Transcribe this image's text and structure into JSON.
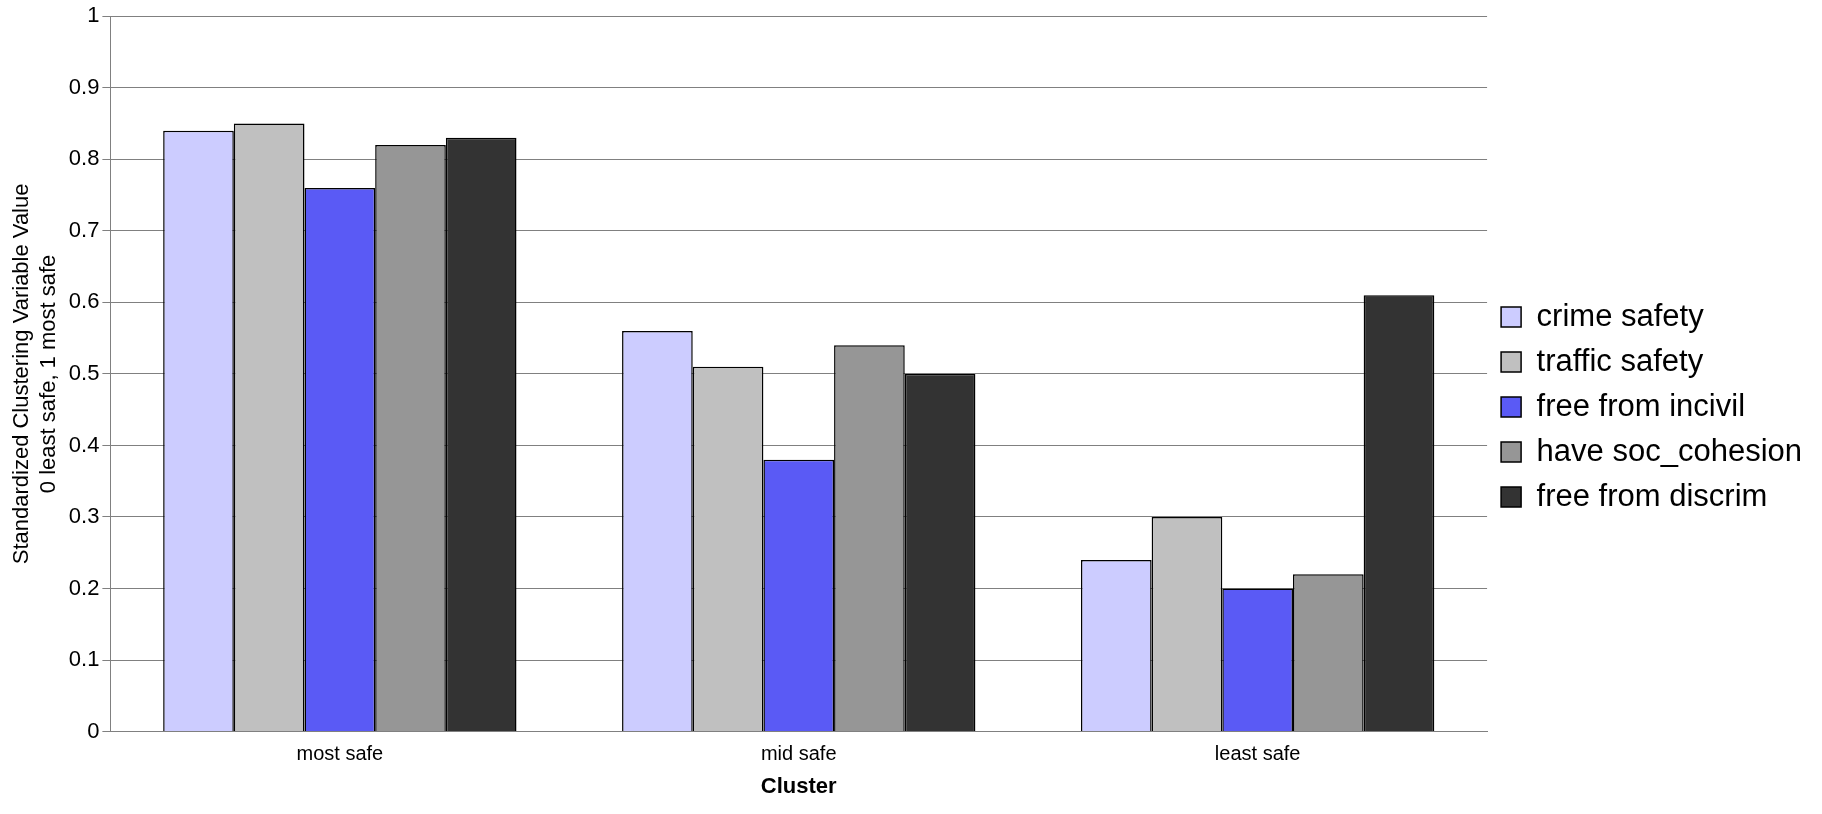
{
  "chart_data": {
    "type": "bar",
    "xlabel": "Cluster",
    "ylabel": "Standardized Clustering Variable Value\n0 least safe, 1 most safe",
    "categories": [
      "most safe",
      "mid safe",
      "least safe"
    ],
    "series": [
      {
        "name": "crime safety",
        "color": "#ccccff",
        "values": [
          0.84,
          0.56,
          0.24
        ]
      },
      {
        "name": "traffic safety",
        "color": "#c0c0c0",
        "values": [
          0.85,
          0.51,
          0.3
        ]
      },
      {
        "name": "free from incivil",
        "color": "#5a5af5",
        "values": [
          0.76,
          0.38,
          0.2
        ]
      },
      {
        "name": "have soc_cohesion",
        "color": "#969696",
        "values": [
          0.82,
          0.54,
          0.22
        ]
      },
      {
        "name": "free from discrim",
        "color": "#333333",
        "values": [
          0.83,
          0.5,
          0.61
        ]
      }
    ],
    "ylim": [
      0,
      1
    ],
    "yticks": [
      0,
      0.1,
      0.2,
      0.3,
      0.4,
      0.5,
      0.6,
      0.7,
      0.8,
      0.9,
      1
    ],
    "grid": "y",
    "legend": "right"
  }
}
